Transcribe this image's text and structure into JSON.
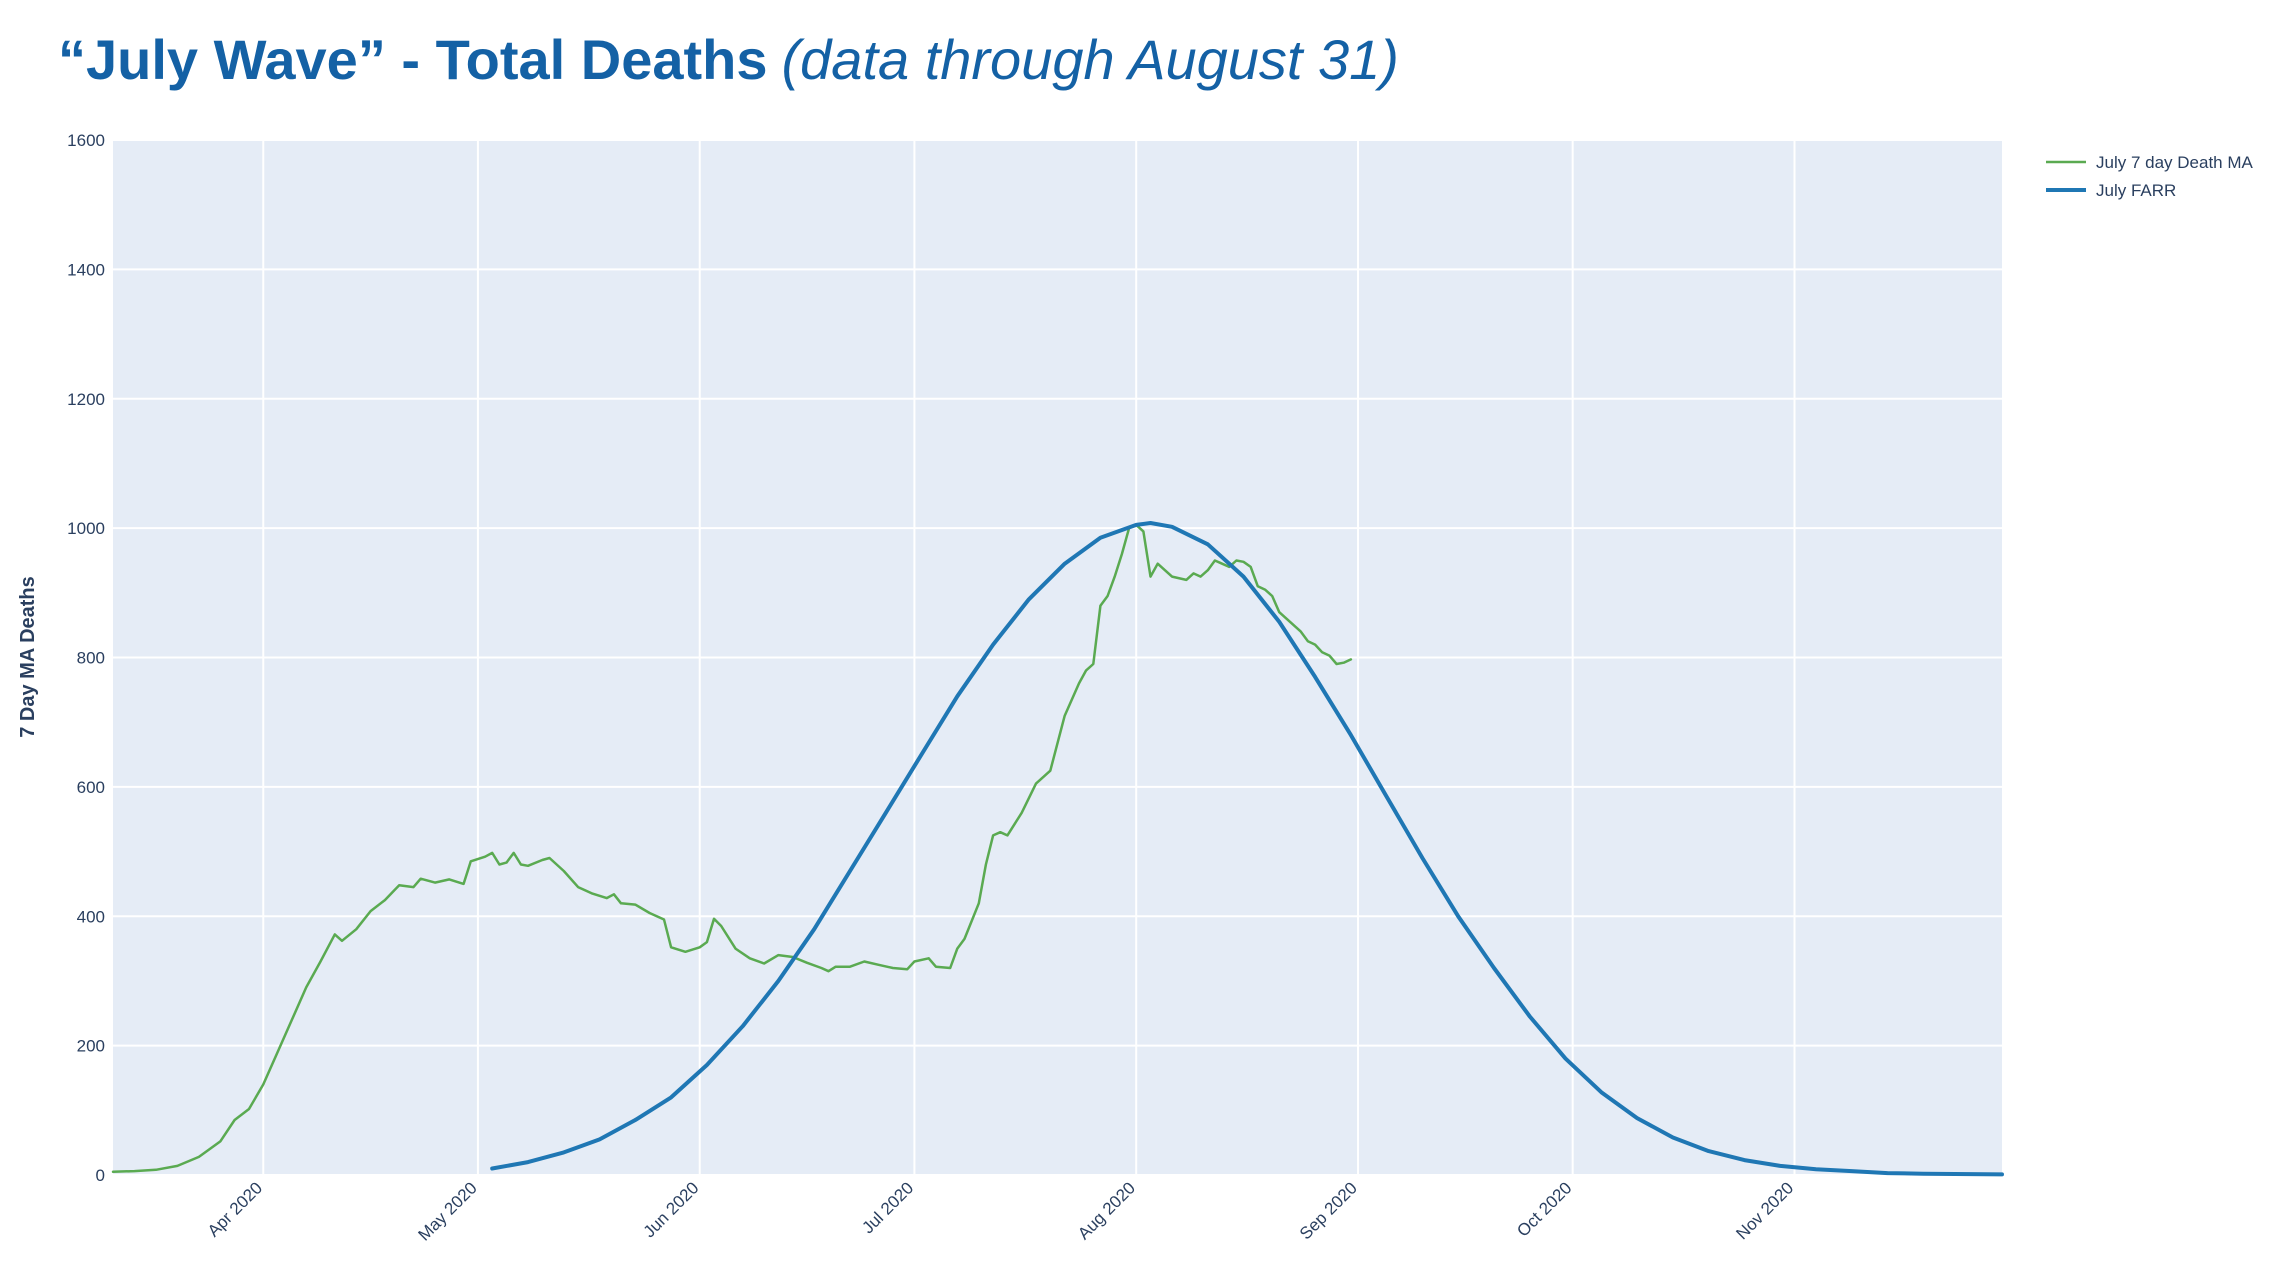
{
  "title": {
    "main": "“July Wave” - Total Deaths",
    "subtitle": "(data through August 31)"
  },
  "chart_data": {
    "type": "line",
    "ylabel": "7 Day MA Deaths",
    "xlabel": "",
    "ylim": [
      0,
      1600
    ],
    "xlim": [
      "2020-03-11",
      "2020-11-30"
    ],
    "yticks": [
      0,
      200,
      400,
      600,
      800,
      1000,
      1200,
      1400,
      1600
    ],
    "xticks": [
      {
        "date": "2020-04-01",
        "label": "Apr 2020"
      },
      {
        "date": "2020-05-01",
        "label": "May 2020"
      },
      {
        "date": "2020-06-01",
        "label": "Jun 2020"
      },
      {
        "date": "2020-07-01",
        "label": "Jul 2020"
      },
      {
        "date": "2020-08-01",
        "label": "Aug 2020"
      },
      {
        "date": "2020-09-01",
        "label": "Sep 2020"
      },
      {
        "date": "2020-10-01",
        "label": "Oct 2020"
      },
      {
        "date": "2020-11-01",
        "label": "Nov 2020"
      }
    ],
    "grid": true,
    "legend_position": "top-right",
    "series": [
      {
        "name": "July 7 day Death MA",
        "color": "#5aaa51",
        "points": [
          [
            "2020-03-11",
            5
          ],
          [
            "2020-03-14",
            6
          ],
          [
            "2020-03-17",
            8
          ],
          [
            "2020-03-20",
            14
          ],
          [
            "2020-03-23",
            28
          ],
          [
            "2020-03-26",
            52
          ],
          [
            "2020-03-28",
            85
          ],
          [
            "2020-03-30",
            102
          ],
          [
            "2020-04-01",
            140
          ],
          [
            "2020-04-03",
            190
          ],
          [
            "2020-04-05",
            240
          ],
          [
            "2020-04-07",
            290
          ],
          [
            "2020-04-09",
            330
          ],
          [
            "2020-04-11",
            372
          ],
          [
            "2020-04-12",
            362
          ],
          [
            "2020-04-14",
            380
          ],
          [
            "2020-04-16",
            408
          ],
          [
            "2020-04-18",
            425
          ],
          [
            "2020-04-20",
            448
          ],
          [
            "2020-04-22",
            445
          ],
          [
            "2020-04-23",
            458
          ],
          [
            "2020-04-25",
            452
          ],
          [
            "2020-04-27",
            457
          ],
          [
            "2020-04-29",
            450
          ],
          [
            "2020-04-30",
            485
          ],
          [
            "2020-05-02",
            492
          ],
          [
            "2020-05-03",
            498
          ],
          [
            "2020-05-04",
            480
          ],
          [
            "2020-05-05",
            483
          ],
          [
            "2020-05-06",
            498
          ],
          [
            "2020-05-07",
            480
          ],
          [
            "2020-05-08",
            478
          ],
          [
            "2020-05-10",
            487
          ],
          [
            "2020-05-11",
            490
          ],
          [
            "2020-05-13",
            470
          ],
          [
            "2020-05-15",
            445
          ],
          [
            "2020-05-17",
            435
          ],
          [
            "2020-05-19",
            428
          ],
          [
            "2020-05-20",
            434
          ],
          [
            "2020-05-21",
            420
          ],
          [
            "2020-05-23",
            418
          ],
          [
            "2020-05-25",
            405
          ],
          [
            "2020-05-27",
            395
          ],
          [
            "2020-05-28",
            352
          ],
          [
            "2020-05-30",
            345
          ],
          [
            "2020-06-01",
            352
          ],
          [
            "2020-06-02",
            360
          ],
          [
            "2020-06-03",
            396
          ],
          [
            "2020-06-04",
            385
          ],
          [
            "2020-06-06",
            350
          ],
          [
            "2020-06-08",
            335
          ],
          [
            "2020-06-10",
            327
          ],
          [
            "2020-06-12",
            340
          ],
          [
            "2020-06-14",
            337
          ],
          [
            "2020-06-16",
            328
          ],
          [
            "2020-06-18",
            320
          ],
          [
            "2020-06-19",
            315
          ],
          [
            "2020-06-20",
            322
          ],
          [
            "2020-06-22",
            322
          ],
          [
            "2020-06-24",
            330
          ],
          [
            "2020-06-26",
            325
          ],
          [
            "2020-06-28",
            320
          ],
          [
            "2020-06-30",
            318
          ],
          [
            "2020-07-01",
            330
          ],
          [
            "2020-07-03",
            335
          ],
          [
            "2020-07-04",
            322
          ],
          [
            "2020-07-06",
            320
          ],
          [
            "2020-07-07",
            350
          ],
          [
            "2020-07-08",
            365
          ],
          [
            "2020-07-10",
            420
          ],
          [
            "2020-07-11",
            480
          ],
          [
            "2020-07-12",
            525
          ],
          [
            "2020-07-13",
            530
          ],
          [
            "2020-07-14",
            525
          ],
          [
            "2020-07-16",
            560
          ],
          [
            "2020-07-18",
            605
          ],
          [
            "2020-07-20",
            625
          ],
          [
            "2020-07-22",
            710
          ],
          [
            "2020-07-24",
            760
          ],
          [
            "2020-07-25",
            780
          ],
          [
            "2020-07-26",
            790
          ],
          [
            "2020-07-27",
            880
          ],
          [
            "2020-07-28",
            895
          ],
          [
            "2020-07-29",
            925
          ],
          [
            "2020-07-30",
            960
          ],
          [
            "2020-07-31",
            1000
          ],
          [
            "2020-08-01",
            1005
          ],
          [
            "2020-08-02",
            995
          ],
          [
            "2020-08-03",
            925
          ],
          [
            "2020-08-04",
            945
          ],
          [
            "2020-08-06",
            925
          ],
          [
            "2020-08-08",
            920
          ],
          [
            "2020-08-09",
            930
          ],
          [
            "2020-08-10",
            925
          ],
          [
            "2020-08-11",
            935
          ],
          [
            "2020-08-12",
            950
          ],
          [
            "2020-08-13",
            945
          ],
          [
            "2020-08-14",
            940
          ],
          [
            "2020-08-15",
            950
          ],
          [
            "2020-08-16",
            948
          ],
          [
            "2020-08-17",
            940
          ],
          [
            "2020-08-18",
            910
          ],
          [
            "2020-08-19",
            905
          ],
          [
            "2020-08-20",
            895
          ],
          [
            "2020-08-21",
            870
          ],
          [
            "2020-08-22",
            860
          ],
          [
            "2020-08-24",
            840
          ],
          [
            "2020-08-25",
            825
          ],
          [
            "2020-08-26",
            820
          ],
          [
            "2020-08-27",
            808
          ],
          [
            "2020-08-28",
            803
          ],
          [
            "2020-08-29",
            790
          ],
          [
            "2020-08-30",
            792
          ],
          [
            "2020-08-31",
            797
          ]
        ]
      },
      {
        "name": "July FARR",
        "color": "#1f77b4",
        "points": [
          [
            "2020-05-03",
            10
          ],
          [
            "2020-05-08",
            20
          ],
          [
            "2020-05-13",
            35
          ],
          [
            "2020-05-18",
            55
          ],
          [
            "2020-05-23",
            85
          ],
          [
            "2020-05-28",
            120
          ],
          [
            "2020-06-02",
            170
          ],
          [
            "2020-06-07",
            230
          ],
          [
            "2020-06-12",
            300
          ],
          [
            "2020-06-17",
            380
          ],
          [
            "2020-06-22",
            470
          ],
          [
            "2020-06-27",
            560
          ],
          [
            "2020-07-02",
            650
          ],
          [
            "2020-07-07",
            740
          ],
          [
            "2020-07-12",
            820
          ],
          [
            "2020-07-17",
            890
          ],
          [
            "2020-07-22",
            945
          ],
          [
            "2020-07-27",
            985
          ],
          [
            "2020-08-01",
            1005
          ],
          [
            "2020-08-03",
            1008
          ],
          [
            "2020-08-06",
            1002
          ],
          [
            "2020-08-11",
            975
          ],
          [
            "2020-08-16",
            925
          ],
          [
            "2020-08-21",
            855
          ],
          [
            "2020-08-26",
            770
          ],
          [
            "2020-08-31",
            680
          ],
          [
            "2020-09-05",
            585
          ],
          [
            "2020-09-10",
            490
          ],
          [
            "2020-09-15",
            400
          ],
          [
            "2020-09-20",
            320
          ],
          [
            "2020-09-25",
            245
          ],
          [
            "2020-09-30",
            180
          ],
          [
            "2020-10-05",
            128
          ],
          [
            "2020-10-10",
            88
          ],
          [
            "2020-10-15",
            58
          ],
          [
            "2020-10-20",
            37
          ],
          [
            "2020-10-25",
            23
          ],
          [
            "2020-10-30",
            14
          ],
          [
            "2020-11-04",
            9
          ],
          [
            "2020-11-09",
            6
          ],
          [
            "2020-11-14",
            3
          ],
          [
            "2020-11-19",
            2
          ],
          [
            "2020-11-30",
            1
          ]
        ]
      }
    ]
  }
}
